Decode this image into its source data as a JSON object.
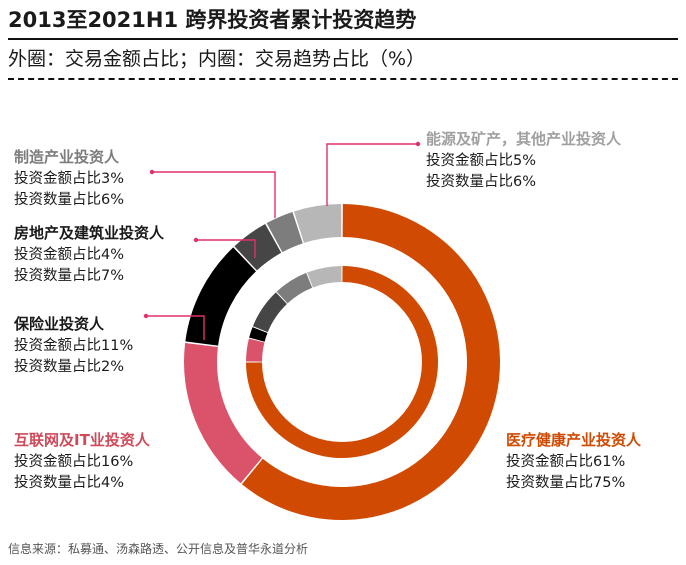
{
  "title": "2013至2021H1 跨界投资者累计投资趋势",
  "subtitle": "外圈：交易金额占比；内圈：交易趋势占比（%）",
  "source": "信息来源：私募通、汤森路透、公开信息及普华永道分析",
  "chart_data": {
    "type": "pie",
    "variant": "nested-donut",
    "rings": {
      "outer": "交易金额占比",
      "inner": "交易趋势占比"
    },
    "unit": "%",
    "categories": [
      {
        "name": "医疗健康产业投资人",
        "outer": 61,
        "inner": 75,
        "outer_label": "投资金额占比61%",
        "inner_label": "投资数量占比75%",
        "color": "#D04A02",
        "name_color": "#D04A02"
      },
      {
        "name": "互联网及IT业投资人",
        "outer": 16,
        "inner": 4,
        "outer_label": "投资金额占比16%",
        "inner_label": "投资数量占比4%",
        "color": "#DB536A",
        "name_color": "#D04A5A"
      },
      {
        "name": "保险业投资人",
        "outer": 11,
        "inner": 2,
        "outer_label": "投资金额占比11%",
        "inner_label": "投资数量占比2%",
        "color": "#000000",
        "name_color": "#1a1a1a"
      },
      {
        "name": "房地产及建筑业投资人",
        "outer": 4,
        "inner": 7,
        "outer_label": "投资金额占比4%",
        "inner_label": "投资数量占比7%",
        "color": "#464646",
        "name_color": "#1a1a1a"
      },
      {
        "name": "制造产业投资人",
        "outer": 3,
        "inner": 6,
        "outer_label": "投资金额占比3%",
        "inner_label": "投资数量占比6%",
        "color": "#7D7D7D",
        "name_color": "#7D7D7D"
      },
      {
        "name": "能源及矿产，其他产业投资人",
        "outer": 5,
        "inner": 6,
        "outer_label": "投资金额占比5%",
        "inner_label": "投资数量占比6%",
        "color": "#B7B7B7",
        "name_color": "#A0A0A0"
      }
    ],
    "leader_color": "#E0306A"
  }
}
